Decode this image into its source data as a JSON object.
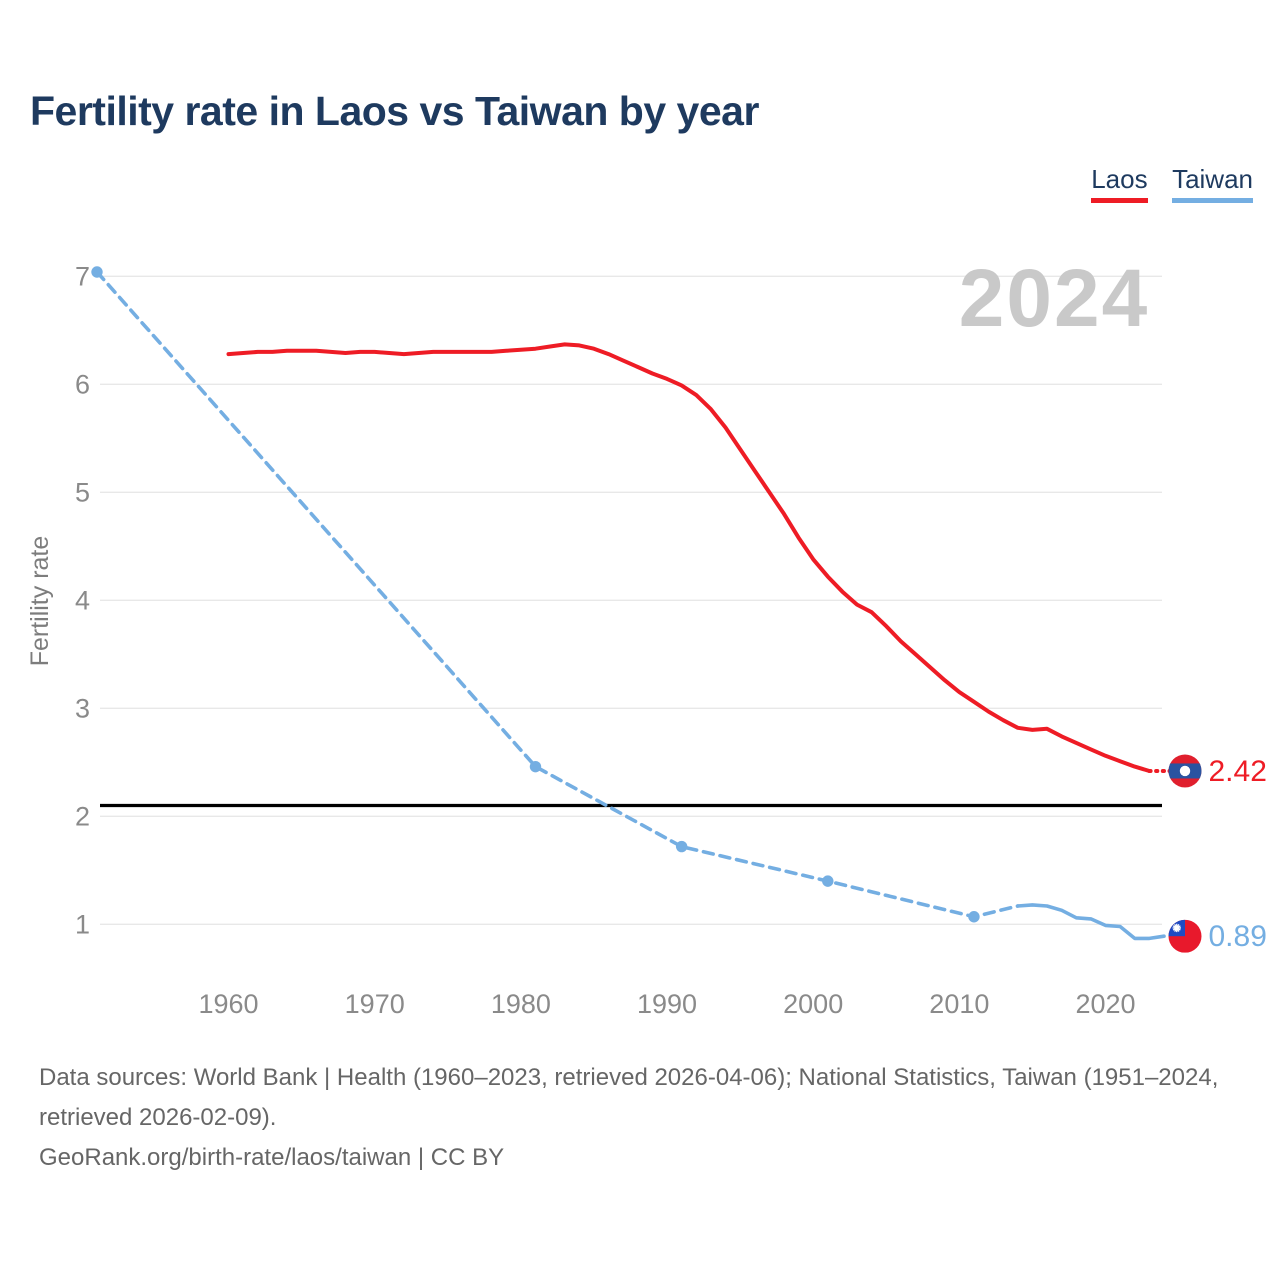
{
  "title": "Fertility rate in Laos vs Taiwan by year",
  "watermark": "2024",
  "legend": [
    {
      "label": "Laos",
      "color": "#ee1c25"
    },
    {
      "label": "Taiwan",
      "color": "#74aee2"
    }
  ],
  "footer": {
    "line1": "Data sources: World Bank | Health (1960–2023, retrieved 2026-04-06); National Statistics, Taiwan (1951–2024, retrieved 2026-02-09).",
    "line2": "GeoRank.org/birth-rate/laos/taiwan | CC BY"
  },
  "chart_data": {
    "type": "line",
    "title": "Fertility rate in Laos vs Taiwan by year",
    "xlabel": "",
    "ylabel": "Fertility rate",
    "xlim": [
      1951,
      2024
    ],
    "ylim": [
      0.4,
      7.04
    ],
    "x_ticks": [
      1960,
      1970,
      1980,
      1990,
      2000,
      2010,
      2020
    ],
    "y_ticks": [
      1,
      2,
      3,
      4,
      5,
      6,
      7
    ],
    "grid": "horizontal",
    "legend_position": "top-right",
    "reference_line": {
      "value": 2.1,
      "color": "#000000",
      "note": "replacement-level line"
    },
    "series": [
      {
        "name": "Laos",
        "color": "#ee1c25",
        "end_label": "2.42",
        "end_year": 2024,
        "end_value": 2.42,
        "flag": "laos",
        "segments": [
          {
            "style": "solid",
            "start_year": 1960,
            "values": [
              6.28,
              6.29,
              6.3,
              6.3,
              6.31,
              6.31,
              6.31,
              6.3,
              6.29,
              6.3,
              6.3,
              6.29,
              6.28,
              6.29,
              6.3,
              6.3,
              6.3,
              6.3,
              6.3,
              6.31,
              6.32,
              6.33,
              6.35,
              6.37,
              6.36,
              6.33,
              6.28,
              6.22,
              6.16,
              6.1,
              6.05,
              5.99,
              5.9,
              5.77,
              5.6,
              5.4,
              5.2,
              5.0,
              4.8,
              4.58,
              4.38,
              4.22,
              4.08,
              3.96,
              3.89,
              3.76,
              3.62,
              3.5,
              3.38,
              3.26,
              3.15,
              3.06,
              2.97,
              2.89,
              2.82,
              2.8,
              2.81,
              2.74,
              2.68,
              2.62,
              2.56,
              2.51,
              2.46,
              2.42
            ]
          },
          {
            "style": "dotted",
            "points": [
              [
                2023,
                2.42
              ],
              [
                2024.4,
                2.42
              ]
            ]
          }
        ],
        "markers": []
      },
      {
        "name": "Taiwan",
        "color": "#74aee2",
        "end_label": "0.89",
        "end_year": 2024,
        "end_value": 0.89,
        "flag": "taiwan",
        "segments": [
          {
            "style": "dashed",
            "points": [
              [
                1951,
                7.04
              ],
              [
                1981,
                2.46
              ],
              [
                1991,
                1.72
              ],
              [
                2001,
                1.4
              ],
              [
                2011,
                1.07
              ],
              [
                2014,
                1.17
              ]
            ]
          },
          {
            "style": "solid",
            "points": [
              [
                2014,
                1.17
              ],
              [
                2015,
                1.18
              ],
              [
                2016,
                1.17
              ],
              [
                2017,
                1.13
              ],
              [
                2018,
                1.06
              ],
              [
                2019,
                1.05
              ],
              [
                2020,
                0.99
              ],
              [
                2021,
                0.98
              ],
              [
                2022,
                0.87
              ],
              [
                2023,
                0.87
              ],
              [
                2024,
                0.89
              ]
            ]
          }
        ],
        "markers": [
          [
            1951,
            7.04
          ],
          [
            1981,
            2.46
          ],
          [
            1991,
            1.72
          ],
          [
            2001,
            1.4
          ],
          [
            2011,
            1.07
          ]
        ]
      }
    ]
  }
}
